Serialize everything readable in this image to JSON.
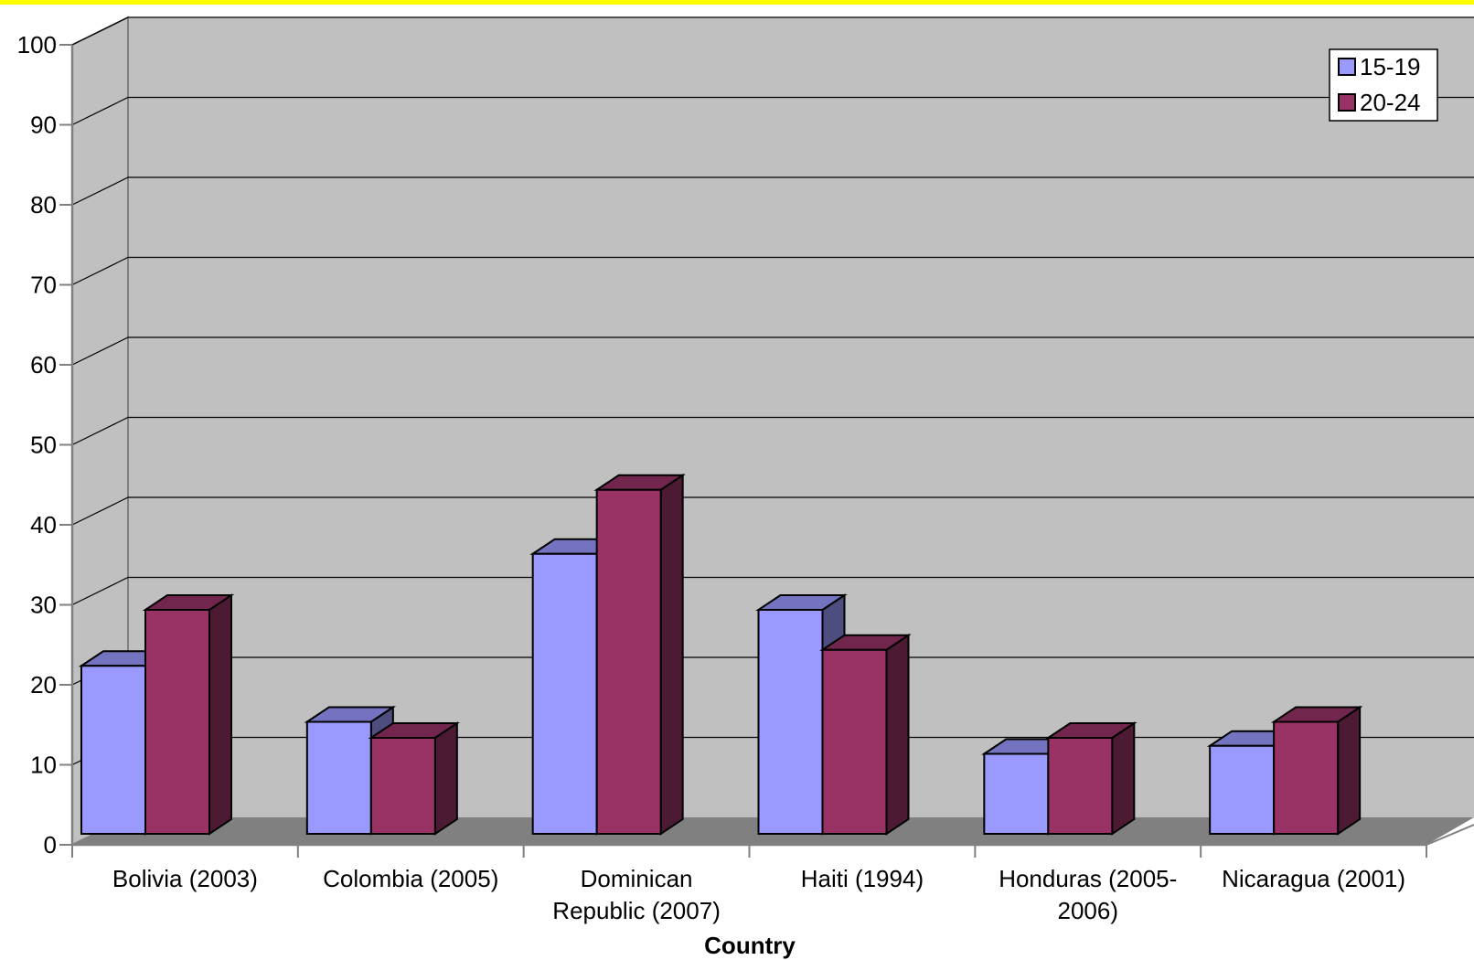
{
  "chart_data": {
    "type": "bar",
    "title": "",
    "xlabel": "Country",
    "ylabel": "",
    "ylim": [
      0,
      100
    ],
    "yticks": [
      0,
      10,
      20,
      30,
      40,
      50,
      60,
      70,
      80,
      90,
      100
    ],
    "grid": true,
    "legend_position": "top-right",
    "categories": [
      [
        "Bolivia (2003)"
      ],
      [
        "Colombia (2005)"
      ],
      [
        "Dominican",
        "Republic (2007)"
      ],
      [
        "Haiti (1994)"
      ],
      [
        "Honduras (2005-",
        "2006)"
      ],
      [
        "Nicaragua (2001)"
      ]
    ],
    "series": [
      {
        "name": "15-19",
        "values": [
          21,
          14,
          35,
          28,
          10,
          11
        ],
        "color": "#9999ff",
        "side_color": "#4d4d80",
        "top_color": "#7373bf"
      },
      {
        "name": "20-24",
        "values": [
          28,
          12,
          43,
          23,
          12,
          14
        ],
        "color": "#993366",
        "side_color": "#4d1a33",
        "top_color": "#73264d"
      }
    ],
    "colors": {
      "top_border": "#ffff00",
      "wall": "#c0c0c0",
      "floor": "#808080"
    }
  }
}
